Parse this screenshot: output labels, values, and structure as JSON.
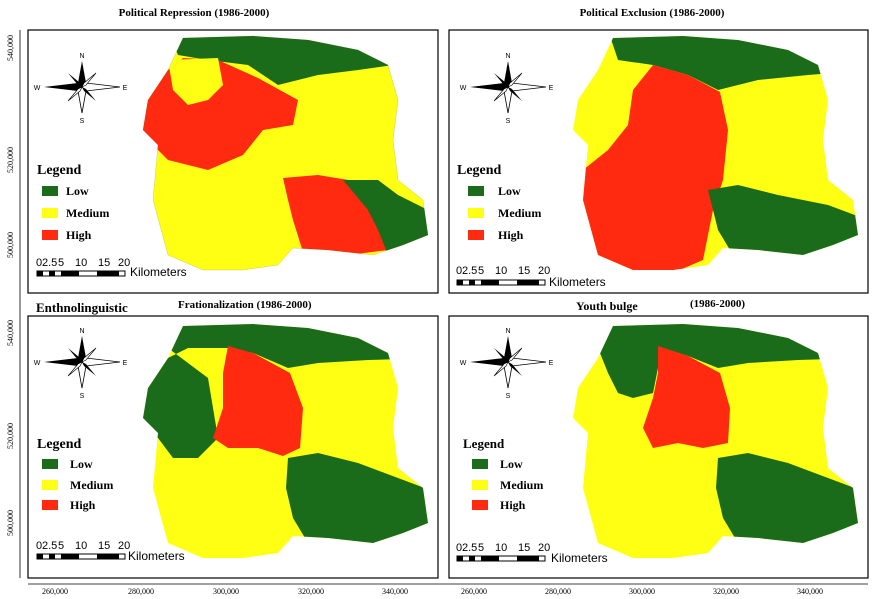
{
  "colors": {
    "low": "#1a6b1a",
    "medium": "#ffff14",
    "high": "#ff2a0f",
    "frame": "#000000",
    "background": "#ffffff"
  },
  "icons": [
    "north-arrow-icon"
  ],
  "shared": {
    "legend_title": "Legend",
    "scale_numbers": [
      "0",
      "2.5",
      "5",
      "10",
      "15",
      "20"
    ],
    "scale_unit": "Kilometers",
    "compass": {
      "n": "N",
      "s": "S",
      "e": "E",
      "w": "W"
    }
  },
  "axes": {
    "y_ticks": [
      "540,000",
      "520,000",
      "500,000"
    ],
    "x_ticks": [
      "260,000",
      "280,000",
      "300,000",
      "320,000",
      "340,000",
      "260,000",
      "280,000",
      "300,000",
      "320,000",
      "340,000"
    ]
  },
  "legend_classes": [
    "Low",
    "Medium",
    "High"
  ],
  "maps": [
    {
      "id": "political-repression",
      "title": "Political Repression (1986-2000)",
      "zones": {
        "north": "low",
        "northwest": "medium",
        "west": "high",
        "center": "medium",
        "southwest": "medium",
        "south_center": "high",
        "east": "low"
      }
    },
    {
      "id": "political-exclusion",
      "title": "Political Exclusion (1986-2000)",
      "zones": {
        "north": "low",
        "northwest": "medium",
        "center": "high",
        "east": "medium",
        "southwest": "high",
        "southeast": "low"
      }
    },
    {
      "id": "ethnolinguistic-fractionalization",
      "title_part1": "Enthnolinguistic",
      "title_part2": "Frationalization (1986-2000)",
      "zones": {
        "north": "low",
        "west": "low",
        "center": "high",
        "east": "medium",
        "southwest": "medium",
        "southeast": "low"
      }
    },
    {
      "id": "youth-bulge",
      "title_part1": "Youth bulge",
      "title_part2": "(1986-2000)",
      "zones": {
        "north": "low",
        "northwest": "low",
        "west": "medium",
        "center": "high",
        "east": "medium",
        "southwest": "medium",
        "southeast": "low"
      }
    }
  ]
}
